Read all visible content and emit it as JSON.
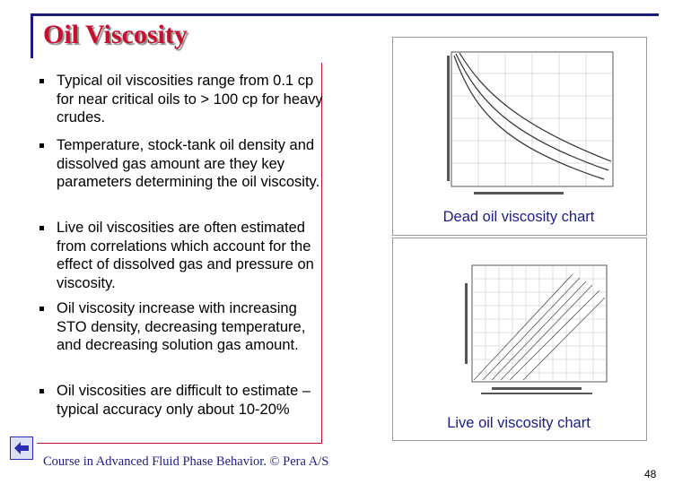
{
  "slide": {
    "title": "Oil Viscosity",
    "bullets": [
      "Typical oil viscosities range from 0.1 cp for near critical oils to > 100 cp for heavy crudes.",
      "Temperature, stock-tank oil density and dissolved gas amount are they key parameters determining the oil viscosity.",
      "Live oil viscosities are often estimated from correlations which account for the effect of dissolved gas and pressure on viscosity.",
      "Oil viscosity increase with increasing STO density, decreasing temperature, and decreasing solution gas amount.",
      "Oil viscosities are difficult to estimate – typical accuracy only about 10-20%"
    ],
    "figures": [
      {
        "caption": "Dead oil viscosity chart"
      },
      {
        "caption": "Live oil viscosity chart"
      }
    ],
    "footer": {
      "course": "Course in Advanced Fluid Phase Behavior. © Pera A/S",
      "page_number": "48"
    },
    "nav_icon": "return-arrow-icon",
    "colors": {
      "title": "#c8102e",
      "frame": "#1c1c7a",
      "caption": "#1c1c8a"
    }
  }
}
